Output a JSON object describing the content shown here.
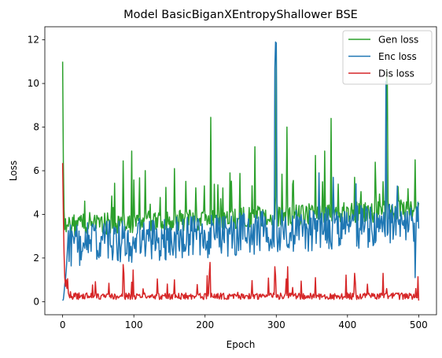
{
  "chart_data": {
    "type": "line",
    "title": "Model BasicBiganXEntropyShallower BSE",
    "xlabel": "Epoch",
    "ylabel": "Loss",
    "xlim": [
      -25,
      525
    ],
    "ylim": [
      -0.6,
      12.6
    ],
    "xticks": [
      0,
      100,
      200,
      300,
      400,
      500
    ],
    "yticks": [
      0,
      2,
      4,
      6,
      8,
      10,
      12
    ],
    "grid": false,
    "legend": "top-right",
    "series": [
      {
        "name": "Gen loss",
        "color": "#2ca02c"
      },
      {
        "name": "Enc loss",
        "color": "#1f77b4"
      },
      {
        "name": "Dis loss",
        "color": "#d62728"
      }
    ]
  }
}
